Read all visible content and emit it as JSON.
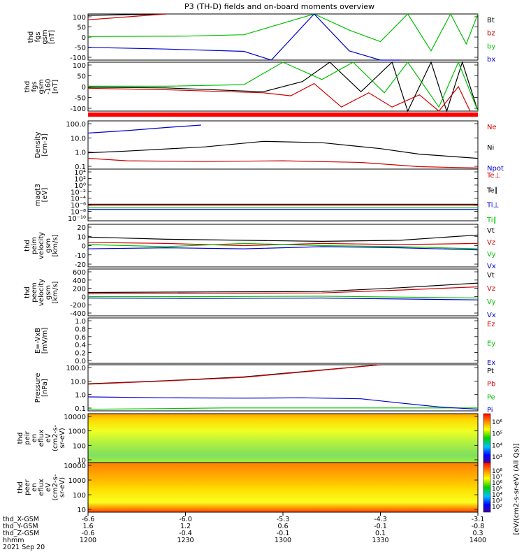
{
  "title": "P3 (TH-D) fields and on-board moments overview",
  "chart_data": [
    {
      "type": "line",
      "ylabel": [
        "thd",
        "fgs",
        "gsm",
        "[nT]"
      ],
      "ytick_labels": [
        "100",
        "50",
        "0",
        "-50",
        "-100"
      ],
      "ylim": [
        -100,
        100
      ],
      "legend": [
        {
          "label": "Bt",
          "color": "#000000"
        },
        {
          "label": "bz",
          "color": "#d00000"
        },
        {
          "label": "by",
          "color": "#00c000"
        },
        {
          "label": "bx",
          "color": "#0000d0"
        }
      ],
      "series": [
        {
          "name": "Bt",
          "color": "#000000",
          "x": [
            0,
            0.2
          ],
          "y": [
            94,
            102
          ]
        },
        {
          "name": "bz",
          "color": "#d00000",
          "x": [
            0,
            0.2
          ],
          "y": [
            75,
            102
          ]
        },
        {
          "name": "by",
          "color": "#00c000",
          "x": [
            0,
            0.25,
            0.4,
            0.5,
            0.58,
            0.67,
            0.75,
            0.82,
            0.88,
            0.93,
            0.97,
            1.0
          ],
          "y": [
            2,
            4,
            10,
            60,
            102,
            30,
            -20,
            102,
            -60,
            102,
            -30,
            102
          ]
        },
        {
          "name": "bx",
          "color": "#0000d0",
          "x": [
            0,
            0.2,
            0.4,
            0.47,
            0.58,
            0.67,
            0.75,
            0.8
          ],
          "y": [
            -45,
            -52,
            -62,
            -100,
            102,
            -60,
            -100,
            -120
          ]
        }
      ]
    },
    {
      "type": "line",
      "ylabel": [
        "thd",
        "fgs",
        "gsm",
        "-160",
        "[nT]"
      ],
      "ytick_labels": [
        "100",
        "50",
        "0",
        "-50",
        "-100"
      ],
      "ylim": [
        -120,
        120
      ],
      "legend": [],
      "series": [
        {
          "name": "",
          "color": "#000000",
          "x": [
            0,
            0.2,
            0.45,
            0.55,
            0.62,
            0.7,
            0.78,
            0.82,
            0.88,
            0.92,
            0.96,
            1.0
          ],
          "y": [
            -3,
            -6,
            -25,
            25,
            120,
            -25,
            120,
            -120,
            120,
            -120,
            120,
            -120
          ]
        },
        {
          "name": "",
          "color": "#d00000",
          "x": [
            0,
            0.2,
            0.45,
            0.52,
            0.58,
            0.65,
            0.72,
            0.78,
            0.85,
            0.9,
            0.95,
            0.98
          ],
          "y": [
            -8,
            -15,
            -30,
            -45,
            15,
            -100,
            -30,
            -100,
            -40,
            -120,
            0,
            -120
          ]
        },
        {
          "name": "",
          "color": "#00c000",
          "x": [
            0,
            0.2,
            0.4,
            0.5,
            0.6,
            0.68,
            0.76,
            0.82,
            0.9,
            0.95,
            1.0
          ],
          "y": [
            2,
            2,
            10,
            120,
            35,
            120,
            -30,
            120,
            -100,
            120,
            -120
          ]
        }
      ]
    },
    {
      "type": "line",
      "ylabel": [
        "Density",
        "[cm-3]"
      ],
      "ytick_labels": [
        "100.0",
        "10.0",
        "1.0",
        "0.1"
      ],
      "ylog": true,
      "ylim": [
        0.1,
        300
      ],
      "legend": [
        {
          "label": "Ne",
          "color": "#d00000"
        },
        {
          "label": "Ni",
          "color": "#000000"
        },
        {
          "label": "Npot",
          "color": "#0000d0"
        }
      ],
      "series": [
        {
          "name": "Ne",
          "color": "#d00000",
          "x": [
            0,
            0.1,
            0.3,
            0.5,
            0.7,
            0.85,
            1.0
          ],
          "y": [
            0.6,
            0.4,
            0.35,
            0.4,
            0.3,
            0.15,
            0.12
          ]
        },
        {
          "name": "Ni",
          "color": "#000000",
          "x": [
            0,
            0.1,
            0.3,
            0.45,
            0.6,
            0.75,
            0.85,
            1.0
          ],
          "y": [
            1.5,
            2,
            4,
            10,
            8,
            3,
            1.2,
            0.6
          ]
        },
        {
          "name": "Npot",
          "color": "#0000d0",
          "x": [
            0,
            0.1,
            0.2,
            0.29
          ],
          "y": [
            40,
            60,
            100,
            150
          ]
        }
      ]
    },
    {
      "type": "line",
      "ylabel": [
        "magt3",
        "[eV]"
      ],
      "ytick_labels": [
        "10⁴",
        "10²",
        "10⁰",
        "10⁻²",
        "10⁻⁴",
        "10⁻⁶",
        "10⁻⁸",
        "10⁻¹⁰"
      ],
      "ylog": true,
      "legend": [
        {
          "label": "Te⊥",
          "color": "#d00000"
        },
        {
          "label": "Te∥",
          "color": "#000000"
        },
        {
          "label": "Ti⊥",
          "color": "#0000d0"
        },
        {
          "label": "Ti∥",
          "color": "#00c000"
        }
      ],
      "series": [
        {
          "name": "Te⊥",
          "color": "#d00000",
          "x": [
            0,
            1
          ],
          "y": [
            0.3,
            0.3
          ]
        },
        {
          "name": "Te∥",
          "color": "#000000",
          "x": [
            0,
            1
          ],
          "y": [
            0.32,
            0.32
          ]
        },
        {
          "name": "Ti⊥",
          "color": "#0000d0",
          "x": [
            0,
            1
          ],
          "y": [
            0.22,
            0.22
          ]
        },
        {
          "name": "Ti∥",
          "color": "#00c000",
          "x": [
            0,
            1
          ],
          "y": [
            0.25,
            0.25
          ]
        }
      ]
    },
    {
      "type": "line",
      "ylabel": [
        "thd",
        "peim",
        "velocity",
        "gsm",
        "[km/s]"
      ],
      "ytick_labels": [
        "20",
        "10",
        "0",
        "-10",
        "-20"
      ],
      "ylim": [
        -20,
        20
      ],
      "legend": [
        {
          "label": "Vt",
          "color": "#000000"
        },
        {
          "label": "Vz",
          "color": "#d00000"
        },
        {
          "label": "Vy",
          "color": "#00c000"
        },
        {
          "label": "Vx",
          "color": "#0000d0"
        }
      ],
      "series": [
        {
          "name": "Vt",
          "color": "#000000",
          "x": [
            0,
            0.2,
            0.4,
            0.6,
            0.8,
            1.0
          ],
          "y": [
            8,
            6,
            5,
            4,
            5,
            10
          ]
        },
        {
          "name": "Vz",
          "color": "#d00000",
          "x": [
            0,
            0.2,
            0.4,
            0.6,
            0.8,
            1.0
          ],
          "y": [
            3,
            2,
            0,
            2,
            1,
            2
          ]
        },
        {
          "name": "Vy",
          "color": "#00c000",
          "x": [
            0,
            0.2,
            0.4,
            0.6,
            0.8,
            1.0
          ],
          "y": [
            1,
            -1,
            2,
            0,
            -1,
            -3
          ]
        },
        {
          "name": "Vx",
          "color": "#0000d0",
          "x": [
            0,
            0.2,
            0.4,
            0.6,
            0.8,
            1.0
          ],
          "y": [
            -3,
            -2,
            -3,
            -1,
            -2,
            -4
          ]
        }
      ]
    },
    {
      "type": "line",
      "ylabel": [
        "thd",
        "peem",
        "velocity",
        "gsm",
        "[km/s]"
      ],
      "ytick_labels": [
        "600",
        "400",
        "200",
        "0",
        "-200",
        "-400"
      ],
      "ylim": [
        -400,
        600
      ],
      "legend": [
        {
          "label": "Vt",
          "color": "#000000"
        },
        {
          "label": "Vz",
          "color": "#d00000"
        },
        {
          "label": "Vy",
          "color": "#00c000"
        },
        {
          "label": "Vx",
          "color": "#0000d0"
        }
      ],
      "series": [
        {
          "name": "Vt",
          "color": "#000000",
          "x": [
            0,
            0.3,
            0.6,
            0.8,
            1.0
          ],
          "y": [
            100,
            110,
            120,
            200,
            300
          ]
        },
        {
          "name": "Vz",
          "color": "#d00000",
          "x": [
            0,
            0.3,
            0.6,
            0.8,
            1.0
          ],
          "y": [
            70,
            80,
            90,
            150,
            220
          ]
        },
        {
          "name": "Vy",
          "color": "#00c000",
          "x": [
            0,
            0.3,
            0.6,
            0.8,
            1.0
          ],
          "y": [
            10,
            10,
            20,
            0,
            -20
          ]
        },
        {
          "name": "Vx",
          "color": "#0000d0",
          "x": [
            0,
            0.3,
            0.6,
            0.8,
            1.0
          ],
          "y": [
            -20,
            -30,
            -20,
            -40,
            -60
          ]
        }
      ]
    },
    {
      "type": "line",
      "ylabel": [
        "E=-VxB",
        "[mV/m]"
      ],
      "ytick_labels": [
        "1.0",
        "0.8",
        "0.6",
        "0.4",
        "0.2",
        "0.0"
      ],
      "ylim": [
        0,
        1
      ],
      "legend": [
        {
          "label": "Ez",
          "color": "#d00000"
        },
        {
          "label": "Ey",
          "color": "#00c000"
        },
        {
          "label": "Ex",
          "color": "#0000d0"
        }
      ],
      "series": []
    },
    {
      "type": "line",
      "ylabel": [
        "Pressure",
        "[nPa]"
      ],
      "ytick_labels": [
        "100.0",
        "10.0",
        "1.0",
        "0.1"
      ],
      "ylog": true,
      "ylim": [
        0.03,
        100
      ],
      "legend": [
        {
          "label": "Pt",
          "color": "#000000"
        },
        {
          "label": "Pb",
          "color": "#d00000"
        },
        {
          "label": "Pe",
          "color": "#00c000"
        },
        {
          "label": "Pi",
          "color": "#0000d0"
        }
      ],
      "series": [
        {
          "name": "Pt",
          "color": "#000000",
          "x": [
            0,
            0.2,
            0.4,
            0.6,
            0.75
          ],
          "y": [
            3.5,
            6,
            12,
            40,
            100
          ]
        },
        {
          "name": "Pb",
          "color": "#d00000",
          "x": [
            0,
            0.2,
            0.4,
            0.6,
            0.75
          ],
          "y": [
            3.3,
            5.8,
            11,
            38,
            100
          ]
        },
        {
          "name": "Pe",
          "color": "#00c000",
          "x": [
            0,
            0.2,
            0.35,
            0.5,
            0.7,
            1.0
          ],
          "y": [
            0.04,
            0.045,
            0.05,
            0.05,
            0.05,
            0.05
          ]
        },
        {
          "name": "Pi",
          "color": "#0000d0",
          "x": [
            0,
            0.2,
            0.4,
            0.55,
            0.7,
            0.8,
            0.9,
            1.0
          ],
          "y": [
            0.35,
            0.3,
            0.28,
            0.3,
            0.25,
            0.12,
            0.06,
            0.04
          ]
        }
      ]
    },
    {
      "type": "heatmap",
      "ylabel": [
        "thd",
        "peir",
        "en",
        "eflux",
        "eV",
        "(cm2-s-",
        "sr-eV)"
      ],
      "ytick_labels": [
        "10000",
        "1000",
        "100",
        "10"
      ],
      "colorbar_ticks": [
        "10⁶",
        "10⁵",
        "10⁴",
        "10³"
      ],
      "colorbar_label": "eV/(cm2-s-sr-eV) (All Qs)"
    },
    {
      "type": "heatmap",
      "ylabel": [
        "thd",
        "peer",
        "en",
        "eflux",
        "eV",
        "(cm2-s-",
        "sr-eV)"
      ],
      "ytick_labels": [
        "10000",
        "1000",
        "100",
        "10"
      ],
      "colorbar_ticks": [
        "10⁸",
        "10⁷",
        "10⁶",
        "10⁵",
        "10⁴",
        "10³",
        "10²"
      ],
      "colorbar_label": "eV/(cm2-s-sr-eV) (All Qs)"
    }
  ],
  "x_axis": {
    "rows": [
      {
        "label": "thd_X-GSM",
        "values": [
          "-6.6",
          "-6.0",
          "-5.3",
          "-4.3",
          "-3.1"
        ]
      },
      {
        "label": "thd_Y-GSM",
        "values": [
          "1.6",
          "1.2",
          "0.6",
          "-0.1",
          "-0.8"
        ]
      },
      {
        "label": "thd_Z-GSM",
        "values": [
          "-0.6",
          "-0.4",
          "-0.1",
          "0.1",
          "0.3"
        ]
      },
      {
        "label": "hhmm",
        "values": [
          "1200",
          "1230",
          "1300",
          "1330",
          "1400"
        ]
      }
    ],
    "date": "2021 Sep 20"
  }
}
